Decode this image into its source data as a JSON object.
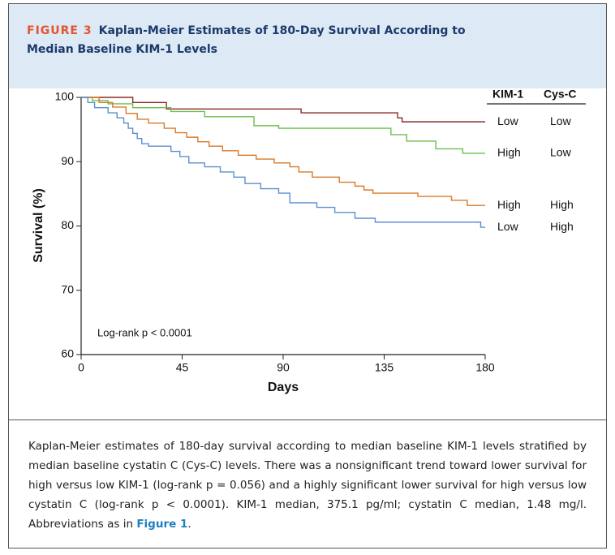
{
  "figure": {
    "label": "FIGURE 3",
    "title": "Kaplan-Meier Estimates of 180-Day Survival According to Median Baseline KIM-1 Levels"
  },
  "chart_data": {
    "type": "step",
    "xlabel": "Days",
    "ylabel": "Survival (%)",
    "xlim": [
      0,
      180
    ],
    "xticks": [
      0,
      45,
      90,
      135,
      180
    ],
    "ylim": [
      60,
      100
    ],
    "yticks": [
      60,
      70,
      80,
      90,
      100
    ],
    "annotation": "Log-rank p < 0.0001",
    "legend_headers": [
      "KIM-1",
      "Cys-C"
    ],
    "series": [
      {
        "kim1": "Low",
        "cysc": "Low",
        "color": "#8b2b2b",
        "x": [
          0,
          23,
          38,
          98,
          141,
          143,
          180
        ],
        "values": [
          100,
          99.2,
          98.2,
          97.6,
          96.8,
          96.2,
          96.2
        ]
      },
      {
        "kim1": "High",
        "cysc": "Low",
        "color": "#6cbf4b",
        "x": [
          0,
          5,
          12,
          23,
          40,
          55,
          77,
          88,
          138,
          145,
          158,
          170,
          180
        ],
        "values": [
          100,
          99.5,
          99,
          98.4,
          97.8,
          97,
          95.6,
          95.2,
          94.2,
          93.2,
          92,
          91.3,
          91.3
        ]
      },
      {
        "kim1": "High",
        "cysc": "High",
        "color": "#d97a2b",
        "x": [
          0,
          8,
          14,
          20,
          25,
          30,
          37,
          42,
          47,
          52,
          57,
          63,
          70,
          78,
          86,
          93,
          97,
          103,
          115,
          122,
          126,
          130,
          150,
          165,
          172,
          180
        ],
        "values": [
          100,
          99.2,
          98.5,
          97.5,
          96.6,
          96,
          95.2,
          94.5,
          93.8,
          93.1,
          92.4,
          91.7,
          91,
          90.4,
          89.8,
          89.2,
          88.4,
          87.6,
          86.8,
          86.2,
          85.6,
          85.1,
          84.6,
          84,
          83.2,
          83.2
        ]
      },
      {
        "kim1": "Low",
        "cysc": "High",
        "color": "#5b8fd4",
        "x": [
          0,
          3,
          6,
          12,
          16,
          19,
          21,
          23,
          25,
          27,
          30,
          40,
          44,
          48,
          55,
          62,
          68,
          73,
          80,
          88,
          93,
          105,
          113,
          122,
          131,
          178,
          180
        ],
        "values": [
          100,
          99.2,
          98.4,
          97.6,
          96.8,
          96,
          95.2,
          94.4,
          93.6,
          92.8,
          92.4,
          91.6,
          90.8,
          89.8,
          89.2,
          88.4,
          87.6,
          86.6,
          85.8,
          85.1,
          83.6,
          82.9,
          82.1,
          81.2,
          80.6,
          79.8,
          79.8
        ]
      }
    ]
  },
  "caption": {
    "text": "Kaplan-Meier estimates of 180-day survival according to median baseline KIM-1 levels stratified by median baseline cystatin C (Cys-C) levels. There was a nonsignificant trend toward lower survival for high versus low KIM-1 (log-rank p = 0.056) and a highly significant lower survival for high versus low cystatin C (log-rank p < 0.0001). KIM-1 median, 375.1 pg/ml; cystatin C median, 1.48 mg/l. Abbreviations as in ",
    "link": "Figure 1",
    "end": "."
  }
}
